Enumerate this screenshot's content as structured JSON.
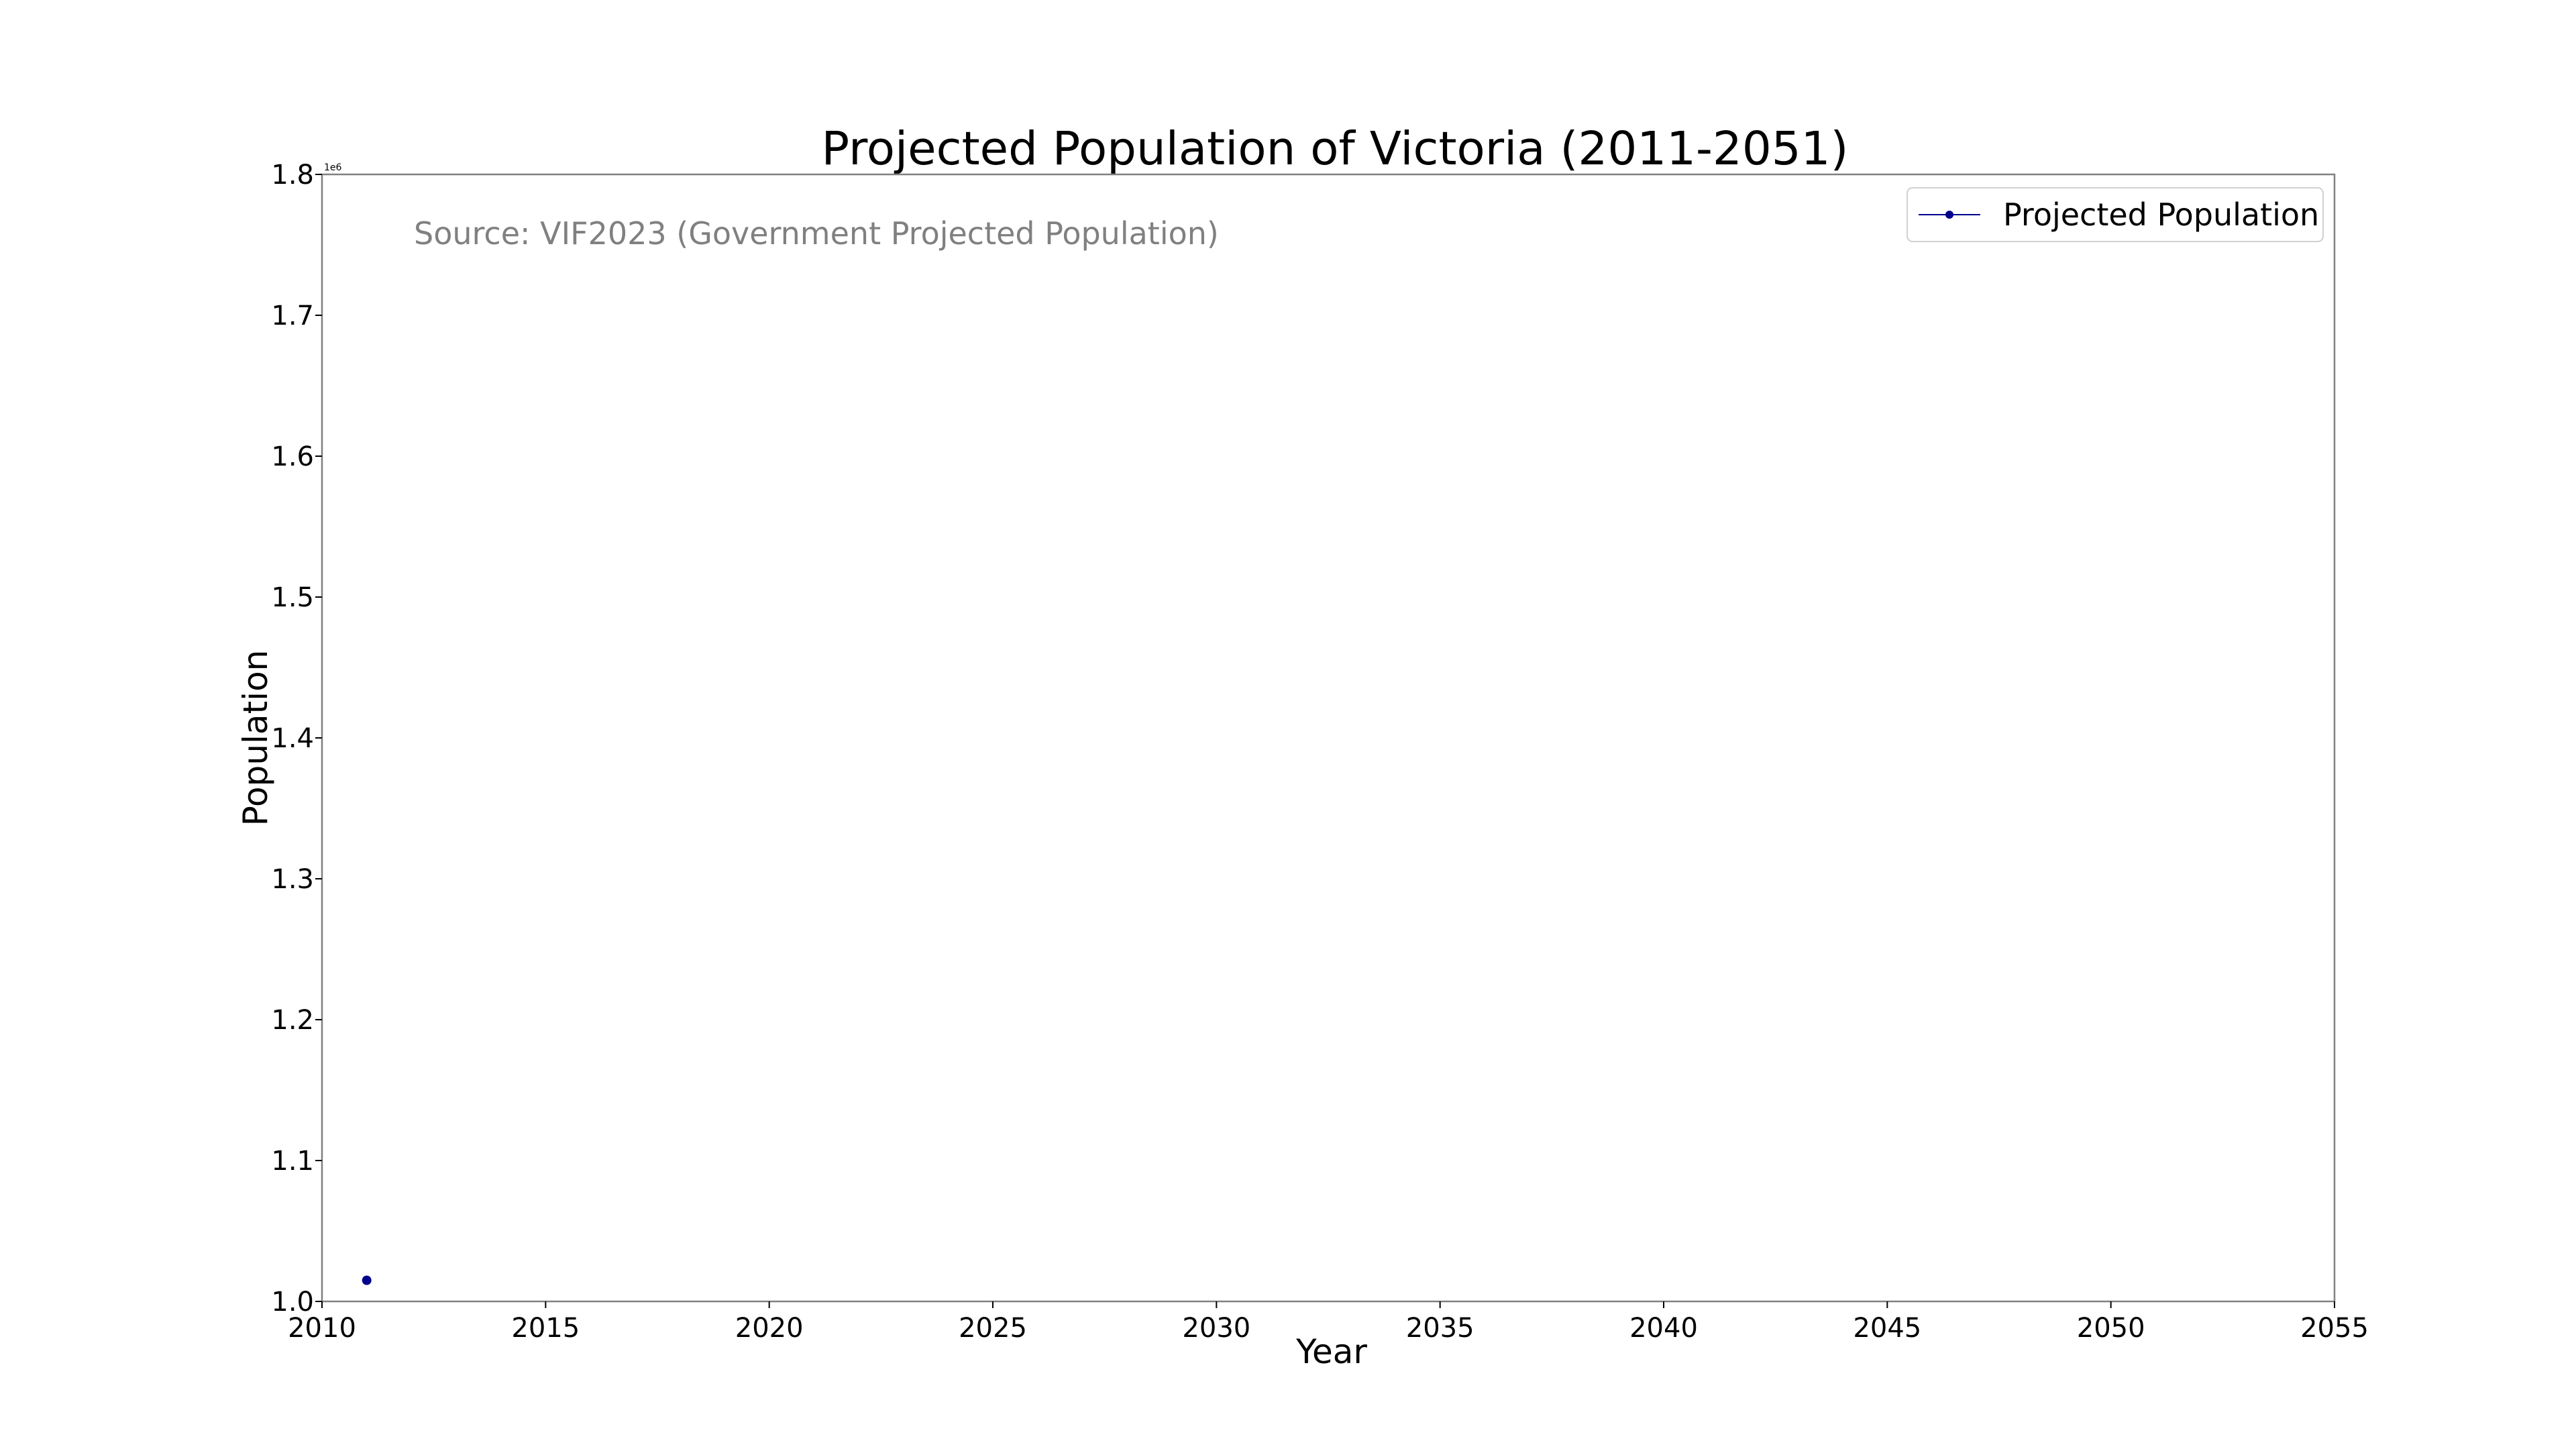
{
  "chart_data": {
    "type": "line",
    "title": "Projected Population of Victoria (2011-2051)",
    "xlabel": "Year",
    "ylabel": "Population",
    "xlim": [
      2010,
      2055
    ],
    "ylim": [
      1000000,
      1800000
    ],
    "x_ticks": [
      2010,
      2015,
      2020,
      2025,
      2030,
      2035,
      2040,
      2045,
      2050,
      2055
    ],
    "y_ticks": [
      1000000,
      1100000,
      1200000,
      1300000,
      1400000,
      1500000,
      1600000,
      1700000,
      1800000
    ],
    "y_tick_labels": [
      "1.0",
      "1.1",
      "1.2",
      "1.3",
      "1.4",
      "1.5",
      "1.6",
      "1.7",
      "1.8"
    ],
    "y_offset_label": "1e6",
    "annotation": "Source: VIF2023 (Government Projected Population)",
    "grid": false,
    "legend_position": "top-right",
    "series": [
      {
        "name": "Projected Population",
        "color": "#00008b",
        "marker": "circle",
        "x": [
          2011
        ],
        "y": [
          1015000
        ]
      }
    ]
  }
}
